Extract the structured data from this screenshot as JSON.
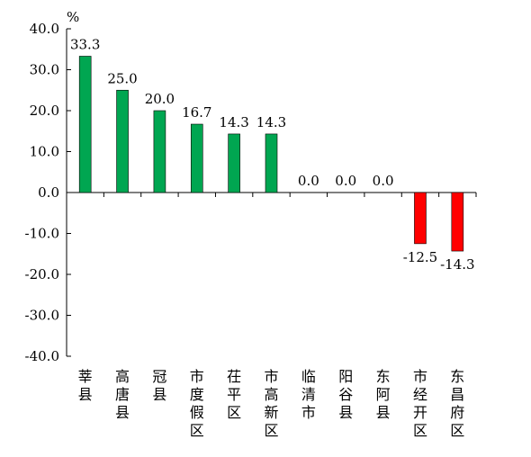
{
  "chart_data": {
    "type": "bar",
    "unit": "%",
    "categories": [
      "莘县",
      "高唐县",
      "冠县",
      "市度假区",
      "茌平区",
      "市高新区",
      "临清市",
      "阳谷县",
      "东阿县",
      "市经开区",
      "东昌府区"
    ],
    "values": [
      33.3,
      25.0,
      20.0,
      16.7,
      14.3,
      14.3,
      0.0,
      0.0,
      0.0,
      -12.5,
      -14.3
    ],
    "value_labels": [
      "33.3",
      "25.0",
      "20.0",
      "16.7",
      "14.3",
      "14.3",
      "0.0",
      "0.0",
      "0.0",
      "-12.5",
      "-14.3"
    ],
    "ylim": [
      -40,
      40
    ],
    "y_ticks": [
      40,
      30,
      20,
      10,
      0,
      -10,
      -20,
      -30,
      -40
    ],
    "y_tick_labels": [
      "40.0",
      "30.0",
      "20.0",
      "10.0",
      "0.0",
      "-10.0",
      "-20.0",
      "-30.0",
      "-40.0"
    ],
    "grid": false,
    "colors": {
      "positive": "#00a651",
      "negative": "#ff0000",
      "axis": "#000000"
    }
  }
}
